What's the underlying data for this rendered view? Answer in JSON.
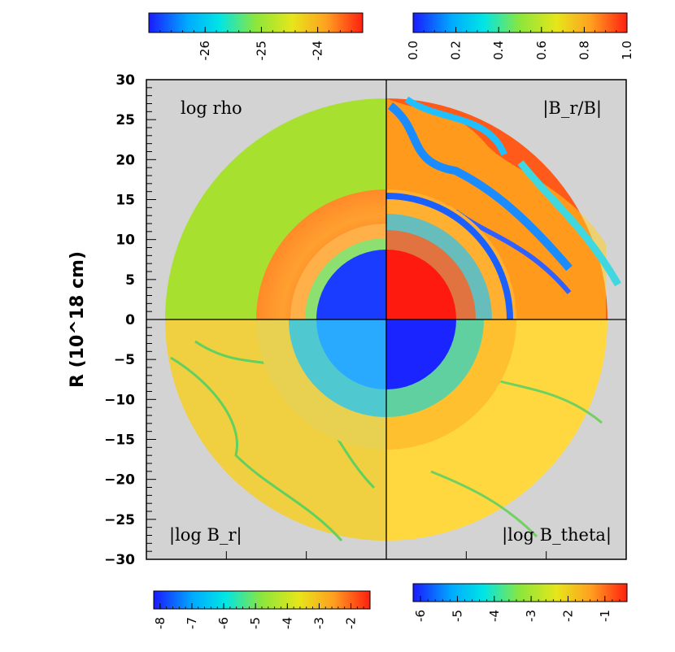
{
  "chart_data": {
    "type": "heatmap",
    "ylabel": "R (10^18 cm)",
    "ylim": [
      -30,
      30
    ],
    "yticks": [
      30,
      25,
      20,
      15,
      10,
      5,
      0,
      -5,
      -10,
      -15,
      -20,
      -25,
      -30
    ],
    "xlim": [
      -30,
      30
    ],
    "grid": false,
    "panels": [
      {
        "quadrant": "top-left",
        "label": "log rho"
      },
      {
        "quadrant": "top-right",
        "label": "|B_r/B|"
      },
      {
        "quadrant": "bottom-left",
        "label": "|log B_r|"
      },
      {
        "quadrant": "bottom-right",
        "label": "|log B_theta|"
      }
    ],
    "colorbars": [
      {
        "id": "top-left",
        "panel": "log rho",
        "min": -27,
        "max": -23.2,
        "ticks": [
          "-26",
          "-25",
          "-24"
        ],
        "tick_values": [
          -26,
          -25,
          -24
        ]
      },
      {
        "id": "top-right",
        "panel": "|B_r/B|",
        "min": 0,
        "max": 1,
        "ticks": [
          "0.0",
          "0.2",
          "0.4",
          "0.6",
          "0.8",
          "1.0"
        ],
        "tick_values": [
          0,
          0.2,
          0.4,
          0.6,
          0.8,
          1.0
        ]
      },
      {
        "id": "bottom-left",
        "panel": "|log B_r|",
        "min": -8.2,
        "max": -1.4,
        "ticks": [
          "-8",
          "-7",
          "-6",
          "-5",
          "-4",
          "-3",
          "-2"
        ],
        "tick_values": [
          -8,
          -7,
          -6,
          -5,
          -4,
          -3,
          -2
        ]
      },
      {
        "id": "bottom-right",
        "panel": "|log B_theta|",
        "min": -6.2,
        "max": -0.4,
        "ticks": [
          "-6",
          "-5",
          "-4",
          "-3",
          "-2",
          "-1"
        ],
        "tick_values": [
          -6,
          -5,
          -4,
          -3,
          -2,
          -1
        ]
      }
    ],
    "colormap": [
      "#1a1aff",
      "#00aaff",
      "#00e5e5",
      "#8ce63c",
      "#e6e61a",
      "#ffa020",
      "#ff2010"
    ]
  }
}
